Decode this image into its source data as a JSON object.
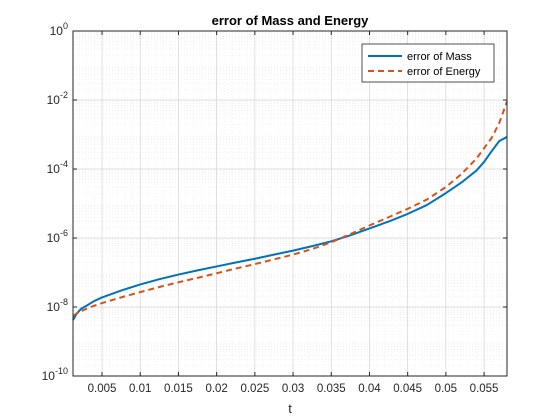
{
  "chart_data": {
    "type": "line",
    "title": "error of Mass and Energy",
    "xlabel": "t",
    "ylabel": "",
    "xscale": "linear",
    "yscale": "log",
    "xlim": [
      0.0012,
      0.058
    ],
    "ylim": [
      1e-10,
      1
    ],
    "grid": true,
    "minor_grid": true,
    "legend_position": "top-right",
    "x_ticks": [
      {
        "value": 0.005,
        "label": "0.005"
      },
      {
        "value": 0.01,
        "label": "0.01"
      },
      {
        "value": 0.015,
        "label": "0.015"
      },
      {
        "value": 0.02,
        "label": "0.02"
      },
      {
        "value": 0.025,
        "label": "0.025"
      },
      {
        "value": 0.03,
        "label": "0.03"
      },
      {
        "value": 0.035,
        "label": "0.035"
      },
      {
        "value": 0.04,
        "label": "0.04"
      },
      {
        "value": 0.045,
        "label": "0.045"
      },
      {
        "value": 0.05,
        "label": "0.05"
      },
      {
        "value": 0.055,
        "label": "0.055"
      }
    ],
    "y_ticks": [
      {
        "value": 1e-10,
        "base": "10",
        "exp": "-10"
      },
      {
        "value": 1e-08,
        "base": "10",
        "exp": "-8"
      },
      {
        "value": 1e-06,
        "base": "10",
        "exp": "-6"
      },
      {
        "value": 0.0001,
        "base": "10",
        "exp": "-4"
      },
      {
        "value": 0.01,
        "base": "10",
        "exp": "-2"
      },
      {
        "value": 1,
        "base": "10",
        "exp": "0"
      }
    ],
    "series": [
      {
        "name": "error of Mass",
        "color": "#0072BD",
        "style": "solid",
        "x": [
          0.0012,
          0.0017,
          0.0023,
          0.003,
          0.004,
          0.005,
          0.0075,
          0.01,
          0.0125,
          0.015,
          0.0175,
          0.02,
          0.0225,
          0.025,
          0.0275,
          0.03,
          0.0325,
          0.035,
          0.0375,
          0.04,
          0.0425,
          0.045,
          0.0475,
          0.05,
          0.052,
          0.054,
          0.055,
          0.056,
          0.057,
          0.058
        ],
        "y": [
          4.2e-09,
          6.5e-09,
          9e-09,
          1.1e-08,
          1.5e-08,
          1.9e-08,
          3e-08,
          4.5e-08,
          6.4e-08,
          8.7e-08,
          1.15e-07,
          1.5e-07,
          1.95e-07,
          2.5e-07,
          3.3e-07,
          4.3e-07,
          5.8e-07,
          8e-07,
          1.2e-06,
          1.9e-06,
          3e-06,
          5e-06,
          9e-06,
          2e-05,
          4e-05,
          9e-05,
          0.00016,
          0.00033,
          0.00065,
          0.00085
        ]
      },
      {
        "name": "error of Energy",
        "color": "#D95319",
        "style": "dashed",
        "x": [
          0.0012,
          0.0017,
          0.0025,
          0.0035,
          0.005,
          0.0075,
          0.01,
          0.0125,
          0.015,
          0.0175,
          0.02,
          0.0225,
          0.025,
          0.0275,
          0.03,
          0.0325,
          0.035,
          0.0375,
          0.04,
          0.0425,
          0.045,
          0.0475,
          0.05,
          0.052,
          0.054,
          0.055,
          0.056,
          0.057,
          0.058
        ],
        "y": [
          5.5e-09,
          6.5e-09,
          8e-09,
          1e-08,
          1.3e-08,
          1.9e-08,
          2.7e-08,
          3.8e-08,
          5.2e-08,
          7e-08,
          9.5e-08,
          1.3e-07,
          1.75e-07,
          2.4e-07,
          3.3e-07,
          4.8e-07,
          7.5e-07,
          1.3e-06,
          2.3e-06,
          4e-06,
          7e-06,
          1.3e-05,
          3e-05,
          7e-05,
          0.0002,
          0.0004,
          0.0008,
          0.0022,
          0.009
        ]
      }
    ]
  }
}
